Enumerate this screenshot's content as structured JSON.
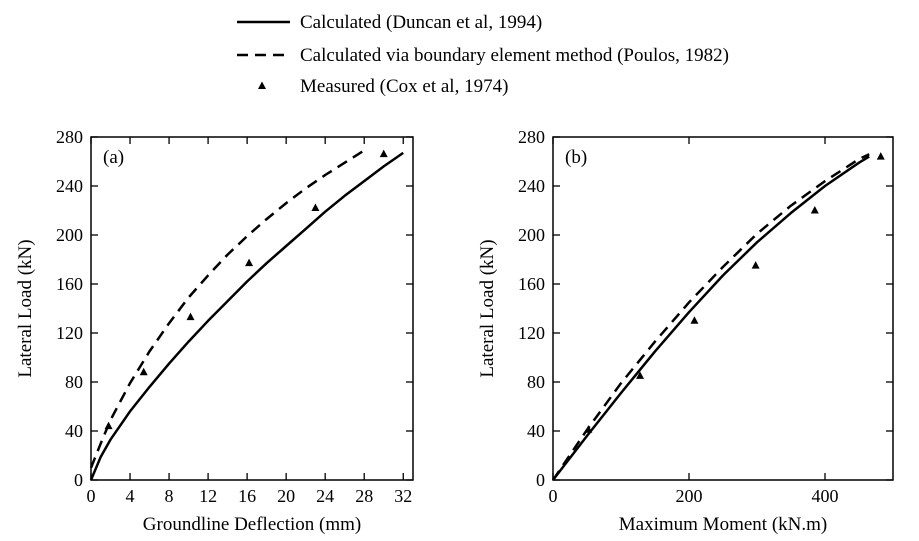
{
  "legend": {
    "placement": "top-center",
    "entries": [
      {
        "label": "Calculated (Duncan et al, 1994)",
        "style": "solid"
      },
      {
        "label": "Calculated via boundary element method (Poulos, 1982)",
        "style": "dashed"
      },
      {
        "label": "Measured (Cox et al, 1974)",
        "style": "triangle"
      }
    ]
  },
  "chart_data": [
    {
      "type": "line",
      "panel_label": "(a)",
      "xlabel": "Groundline Deflection (mm)",
      "ylabel": "Lateral Load (kN)",
      "xlim": [
        0,
        33
      ],
      "ylim": [
        0,
        280
      ],
      "xticks": [
        0,
        4,
        8,
        12,
        16,
        20,
        24,
        28,
        32
      ],
      "yticks": [
        0,
        40,
        80,
        120,
        160,
        200,
        240,
        280
      ],
      "grid": false,
      "series": [
        {
          "name": "Calculated (Duncan et al, 1994)",
          "style": "solid",
          "x": [
            0,
            1,
            2,
            4,
            6,
            8,
            10,
            12,
            14,
            16,
            18,
            20,
            22,
            24,
            26,
            28,
            30,
            32
          ],
          "y": [
            0,
            19,
            33,
            56,
            76,
            95,
            113,
            130,
            146,
            162,
            177,
            191,
            205,
            219,
            232,
            244,
            256,
            267
          ]
        },
        {
          "name": "Calculated via boundary element method (Poulos, 1982)",
          "style": "dashed",
          "x": [
            0,
            1,
            2,
            4,
            6,
            8,
            10,
            12,
            14,
            16,
            18,
            20,
            22,
            24,
            26,
            28
          ],
          "y": [
            10,
            30,
            49,
            79,
            105,
            128,
            149,
            167,
            184,
            199,
            213,
            226,
            238,
            249,
            259,
            269
          ]
        },
        {
          "name": "Measured (Cox et al, 1974)",
          "style": "triangle",
          "x": [
            1.8,
            5.4,
            10.2,
            16.2,
            23,
            30
          ],
          "y": [
            44,
            88,
            133,
            177,
            222,
            266
          ]
        }
      ]
    },
    {
      "type": "line",
      "panel_label": "(b)",
      "xlabel": "Maximum Moment (kN.m)",
      "ylabel": "Lateral Load (kN)",
      "xlim": [
        0,
        500
      ],
      "ylim": [
        0,
        280
      ],
      "xticks": [
        0,
        200,
        400
      ],
      "yticks": [
        0,
        40,
        80,
        120,
        160,
        200,
        240,
        280
      ],
      "grid": false,
      "series": [
        {
          "name": "Calculated (Duncan et al, 1994)",
          "style": "solid",
          "x": [
            0,
            50,
            100,
            150,
            200,
            250,
            300,
            350,
            400,
            450,
            465
          ],
          "y": [
            0,
            36,
            71,
            105,
            137,
            167,
            194,
            218,
            240,
            259,
            264
          ]
        },
        {
          "name": "Calculated via boundary element method (Poulos, 1982)",
          "style": "dashed",
          "x": [
            0,
            50,
            100,
            150,
            200,
            250,
            300,
            350,
            400,
            450,
            465
          ],
          "y": [
            0,
            41,
            79,
            113,
            145,
            174,
            201,
            224,
            244,
            262,
            266
          ]
        },
        {
          "name": "Measured (Cox et al, 1974)",
          "style": "triangle",
          "x": [
            52,
            128,
            208,
            298,
            385,
            482
          ],
          "y": [
            41,
            85,
            130,
            175,
            220,
            264
          ]
        }
      ]
    }
  ]
}
